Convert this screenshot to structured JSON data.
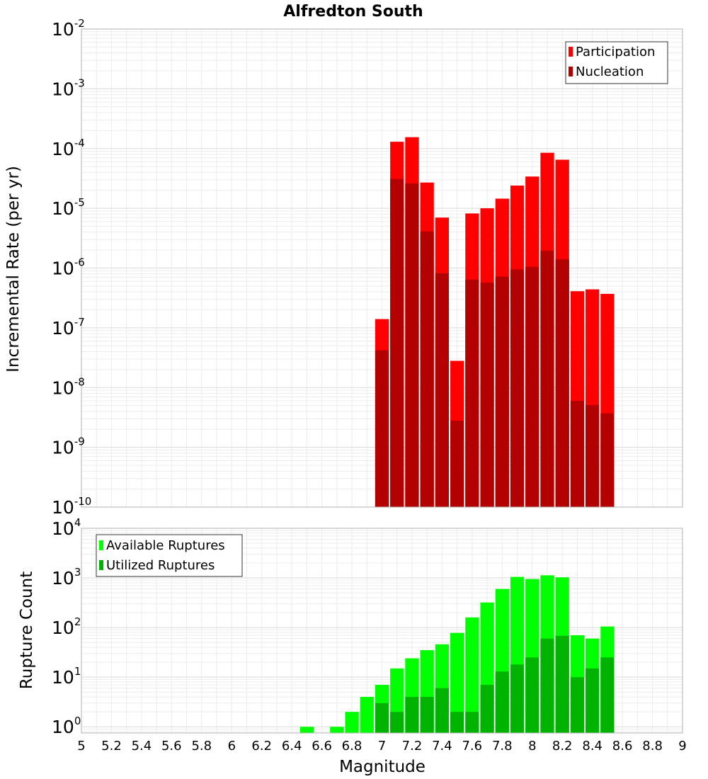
{
  "chart_data": [
    {
      "type": "bar",
      "title": "Alfredton South",
      "xlabel": "",
      "ylabel": "Incremental Rate (per yr)",
      "yscale": "log",
      "ylim": [
        1e-10,
        0.01
      ],
      "xlim": [
        5,
        9
      ],
      "legend_position": "top-right",
      "y_ticks": [
        {
          "base": "10",
          "exp": "-10"
        },
        {
          "base": "10",
          "exp": "-9"
        },
        {
          "base": "10",
          "exp": "-8"
        },
        {
          "base": "10",
          "exp": "-7"
        },
        {
          "base": "10",
          "exp": "-6"
        },
        {
          "base": "10",
          "exp": "-5"
        },
        {
          "base": "10",
          "exp": "-4"
        },
        {
          "base": "10",
          "exp": "-3"
        },
        {
          "base": "10",
          "exp": "-2"
        }
      ],
      "x": [
        7.0,
        7.1,
        7.2,
        7.3,
        7.4,
        7.5,
        7.6,
        7.7,
        7.8,
        7.9,
        8.0,
        8.1,
        8.2,
        8.3,
        8.4,
        8.5
      ],
      "series": [
        {
          "name": "Participation",
          "color": "#ff0000",
          "values": [
            1.4e-07,
            0.00013,
            0.000155,
            2.7e-05,
            7e-06,
            2.8e-08,
            8.2e-06,
            1e-05,
            1.45e-05,
            2.4e-05,
            3.4e-05,
            8.5e-05,
            6.5e-05,
            4.1e-07,
            4.4e-07,
            3.7e-07
          ]
        },
        {
          "name": "Nucleation",
          "color": "#b30000",
          "values": [
            4.2e-08,
            3.1e-05,
            2.6e-05,
            4.1e-06,
            8.2e-07,
            2.8e-09,
            6.4e-07,
            5.7e-07,
            7.2e-07,
            9.5e-07,
            1.05e-06,
            1.95e-06,
            1.4e-06,
            6e-09,
            5.1e-09,
            3.7e-09
          ]
        }
      ]
    },
    {
      "type": "bar",
      "title": "",
      "xlabel": "Magnitude",
      "ylabel": "Rupture Count",
      "yscale": "log",
      "ylim": [
        0.75,
        10000
      ],
      "xlim": [
        5,
        9
      ],
      "legend_position": "top-left",
      "y_ticks": [
        {
          "base": "10",
          "exp": "0",
          "value": 1
        },
        {
          "base": "10",
          "exp": "1",
          "value": 10
        },
        {
          "base": "10",
          "exp": "2",
          "value": 100
        },
        {
          "base": "10",
          "exp": "3",
          "value": 1000
        },
        {
          "base": "10",
          "exp": "4",
          "value": 10000
        }
      ],
      "x_tick_labels": [
        "5",
        "5.2",
        "5.4",
        "5.6",
        "5.8",
        "6",
        "6.2",
        "6.4",
        "6.6",
        "6.8",
        "7",
        "7.2",
        "7.4",
        "7.6",
        "7.8",
        "8",
        "8.2",
        "8.4",
        "8.6",
        "8.8",
        "9"
      ],
      "x": [
        6.5,
        6.6,
        6.7,
        6.8,
        6.9,
        7.0,
        7.1,
        7.2,
        7.3,
        7.4,
        7.5,
        7.6,
        7.7,
        7.8,
        7.9,
        8.0,
        8.1,
        8.2,
        8.3,
        8.4,
        8.5
      ],
      "series": [
        {
          "name": "Available Ruptures",
          "color": "#00ff00",
          "values": [
            1,
            0,
            1,
            2,
            4,
            7,
            15,
            24,
            35,
            46,
            78,
            160,
            320,
            600,
            1050,
            950,
            1130,
            1030,
            70,
            60,
            105
          ]
        },
        {
          "name": "Utilized Ruptures",
          "color": "#00b300",
          "values": [
            0,
            0,
            0,
            0,
            0,
            3,
            2,
            4,
            4,
            6,
            2,
            2,
            7,
            13,
            18,
            25,
            60,
            68,
            10,
            15,
            25
          ]
        }
      ]
    }
  ]
}
